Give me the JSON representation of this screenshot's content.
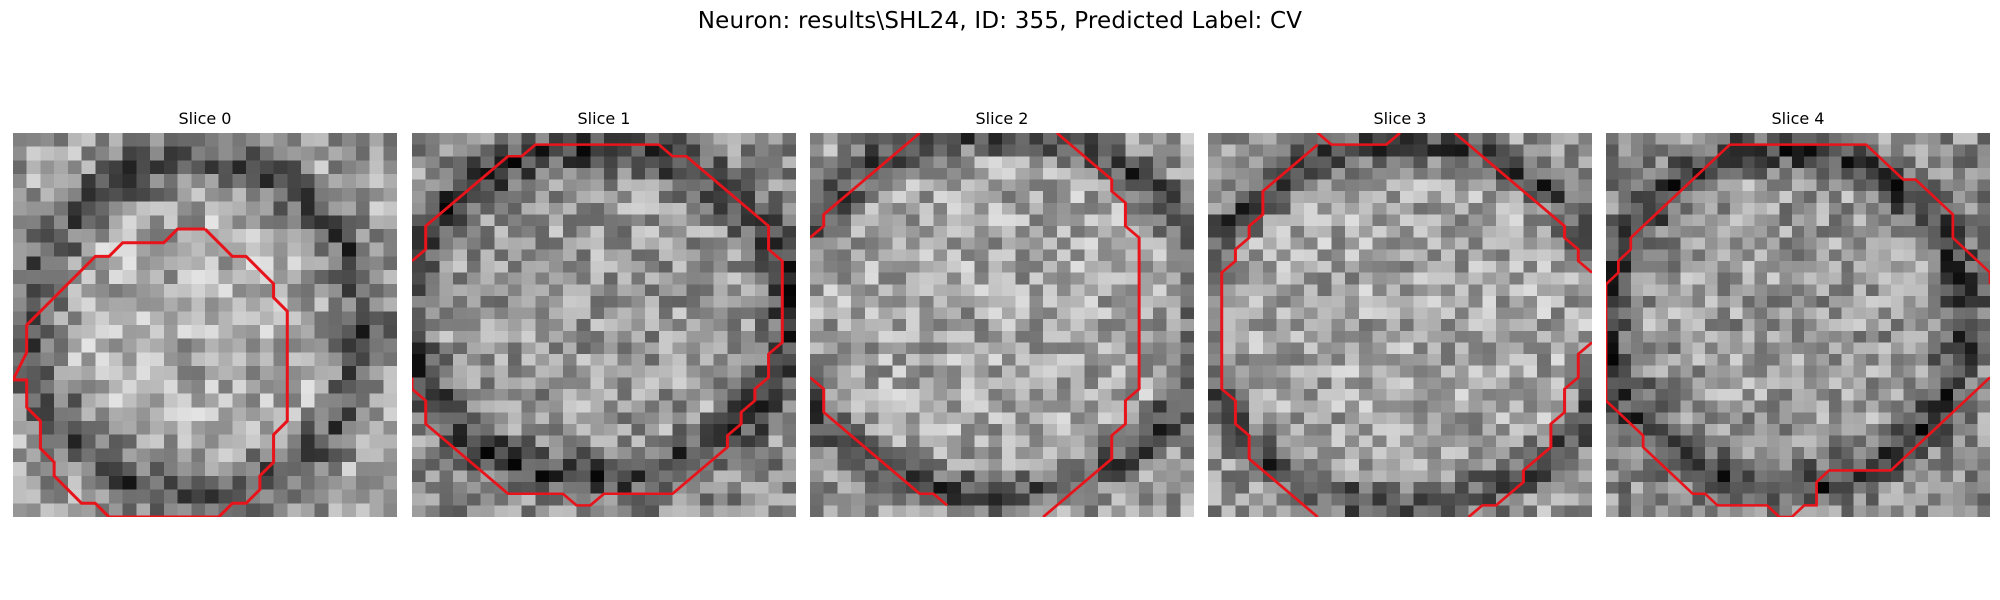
{
  "figure": {
    "title": "Neuron: results\\SHL24, ID: 355, Predicted Label: CV"
  },
  "contour_color": "#e8141b",
  "panels": [
    {
      "title": "Slice 0",
      "contours": [
        [
          [
            14,
            7
          ],
          [
            12,
            7
          ],
          [
            11,
            8
          ],
          [
            8,
            8
          ],
          [
            7,
            9
          ],
          [
            6,
            9
          ],
          [
            5,
            10
          ],
          [
            4,
            11
          ],
          [
            3,
            12
          ],
          [
            2,
            13
          ],
          [
            1,
            14
          ],
          [
            1,
            16
          ],
          [
            0,
            18
          ],
          [
            1,
            18
          ],
          [
            1,
            20
          ],
          [
            2,
            21
          ],
          [
            2,
            23
          ],
          [
            3,
            24
          ],
          [
            3,
            25
          ],
          [
            4,
            26
          ],
          [
            5,
            27
          ],
          [
            6,
            27
          ],
          [
            7,
            28
          ],
          [
            15,
            28
          ],
          [
            16,
            27
          ],
          [
            17,
            27
          ],
          [
            18,
            26
          ],
          [
            18,
            25
          ],
          [
            19,
            24
          ],
          [
            19,
            22
          ],
          [
            20,
            21
          ],
          [
            20,
            18
          ],
          [
            20,
            15
          ],
          [
            20,
            13
          ],
          [
            19,
            12
          ],
          [
            19,
            11
          ],
          [
            18,
            10
          ],
          [
            17,
            9
          ],
          [
            16,
            9
          ],
          [
            15,
            8
          ],
          [
            14,
            7
          ]
        ]
      ],
      "seed": 11,
      "ring": {
        "cx": 13.5,
        "cy": 14.2,
        "r": 12.2,
        "w": 2.6
      },
      "bg": 0.62
    },
    {
      "title": "Slice 1",
      "contours": [
        [
          [
            0,
            11
          ],
          [
            1,
            10
          ],
          [
            1,
            8
          ],
          [
            2,
            7
          ],
          [
            3,
            6
          ],
          [
            4,
            5
          ],
          [
            5,
            4
          ],
          [
            6,
            3
          ],
          [
            7,
            2
          ],
          [
            8,
            2
          ],
          [
            9,
            1
          ],
          [
            18,
            1
          ],
          [
            19,
            2
          ],
          [
            20,
            2
          ],
          [
            21,
            3
          ],
          [
            22,
            4
          ],
          [
            23,
            5
          ],
          [
            24,
            6
          ],
          [
            25,
            7
          ],
          [
            26,
            8
          ],
          [
            26,
            10
          ],
          [
            27,
            11
          ],
          [
            27,
            18
          ],
          [
            26,
            19
          ],
          [
            26,
            21
          ],
          [
            25,
            22
          ],
          [
            25,
            23
          ],
          [
            24,
            24
          ],
          [
            24,
            25
          ],
          [
            23,
            26
          ],
          [
            23,
            27
          ],
          [
            22,
            28
          ],
          [
            21,
            29
          ],
          [
            20,
            30
          ],
          [
            19,
            31
          ],
          [
            14,
            31
          ],
          [
            13,
            32
          ],
          [
            12,
            32
          ],
          [
            11,
            31
          ],
          [
            7,
            31
          ],
          [
            6,
            30
          ],
          [
            5,
            29
          ],
          [
            4,
            28
          ],
          [
            3,
            27
          ],
          [
            2,
            26
          ],
          [
            1,
            25
          ],
          [
            1,
            23
          ],
          [
            0,
            22
          ],
          [
            0,
            21
          ]
        ]
      ],
      "seed": 23,
      "ring": {
        "cx": 13.5,
        "cy": 15.5,
        "r": 14.2,
        "w": 2.6
      },
      "bg": 0.55
    },
    {
      "title": "Slice 2",
      "contours": [
        [
          [
            0,
            9
          ],
          [
            1,
            8
          ],
          [
            1,
            7
          ],
          [
            2,
            6
          ],
          [
            3,
            5
          ],
          [
            4,
            4
          ],
          [
            5,
            3
          ],
          [
            6,
            2
          ],
          [
            7,
            1
          ],
          [
            8,
            0
          ]
        ],
        [
          [
            18,
            0
          ],
          [
            19,
            1
          ],
          [
            20,
            2
          ],
          [
            21,
            3
          ],
          [
            22,
            4
          ],
          [
            22,
            5
          ],
          [
            23,
            6
          ],
          [
            23,
            8
          ],
          [
            24,
            9
          ],
          [
            24,
            15
          ],
          [
            24,
            20
          ],
          [
            24,
            22
          ],
          [
            23,
            23
          ],
          [
            23,
            25
          ],
          [
            22,
            26
          ],
          [
            22,
            28
          ],
          [
            21,
            29
          ],
          [
            20,
            30
          ],
          [
            19,
            31
          ],
          [
            18,
            32
          ],
          [
            17,
            33
          ]
        ],
        [
          [
            0,
            21
          ],
          [
            1,
            22
          ],
          [
            1,
            24
          ],
          [
            2,
            25
          ],
          [
            3,
            26
          ],
          [
            4,
            27
          ],
          [
            5,
            28
          ],
          [
            6,
            29
          ],
          [
            7,
            30
          ],
          [
            8,
            31
          ],
          [
            9,
            31
          ],
          [
            10,
            32
          ]
        ]
      ],
      "seed": 37,
      "ring": {
        "cx": 13.5,
        "cy": 15.5,
        "r": 15.5,
        "w": 2.4
      },
      "bg": 0.6
    },
    {
      "title": "Slice 3",
      "contours": [
        [
          [
            8,
            0
          ],
          [
            9,
            1
          ],
          [
            13,
            1
          ],
          [
            14,
            0
          ]
        ],
        [
          [
            18,
            0
          ],
          [
            19,
            1
          ],
          [
            20,
            2
          ],
          [
            21,
            3
          ],
          [
            22,
            4
          ],
          [
            23,
            5
          ],
          [
            24,
            6
          ],
          [
            25,
            7
          ],
          [
            26,
            8
          ],
          [
            26,
            9
          ],
          [
            27,
            10
          ],
          [
            27,
            11
          ],
          [
            28,
            12
          ]
        ],
        [
          [
            8,
            1
          ],
          [
            7,
            2
          ],
          [
            6,
            3
          ],
          [
            5,
            4
          ],
          [
            4,
            5
          ],
          [
            4,
            7
          ],
          [
            3,
            8
          ],
          [
            3,
            9
          ],
          [
            2,
            10
          ],
          [
            2,
            11
          ],
          [
            1,
            12
          ],
          [
            1,
            13
          ],
          [
            1,
            20
          ],
          [
            1,
            22
          ],
          [
            2,
            23
          ],
          [
            2,
            25
          ],
          [
            3,
            26
          ],
          [
            3,
            28
          ],
          [
            4,
            29
          ],
          [
            5,
            30
          ],
          [
            6,
            31
          ],
          [
            7,
            32
          ],
          [
            8,
            33
          ]
        ],
        [
          [
            28,
            18
          ],
          [
            27,
            19
          ],
          [
            27,
            21
          ],
          [
            26,
            22
          ],
          [
            26,
            24
          ],
          [
            25,
            25
          ],
          [
            25,
            27
          ],
          [
            24,
            28
          ],
          [
            23,
            29
          ],
          [
            23,
            30
          ],
          [
            22,
            31
          ],
          [
            21,
            32
          ],
          [
            20,
            32
          ],
          [
            19,
            33
          ]
        ]
      ],
      "seed": 53,
      "ring": {
        "cx": 14.5,
        "cy": 16.5,
        "r": 15.5,
        "w": 2.4
      },
      "bg": 0.6
    },
    {
      "title": "Slice 4",
      "contours": [
        [
          [
            0,
            13
          ],
          [
            1,
            12
          ],
          [
            1,
            11
          ],
          [
            2,
            10
          ],
          [
            2,
            9
          ],
          [
            3,
            8
          ],
          [
            4,
            7
          ],
          [
            5,
            6
          ],
          [
            6,
            5
          ],
          [
            7,
            4
          ],
          [
            8,
            3
          ],
          [
            9,
            2
          ],
          [
            10,
            1
          ],
          [
            21,
            1
          ],
          [
            22,
            2
          ],
          [
            23,
            3
          ],
          [
            24,
            4
          ],
          [
            25,
            4
          ],
          [
            26,
            5
          ],
          [
            27,
            6
          ],
          [
            28,
            7
          ],
          [
            28,
            9
          ],
          [
            29,
            10
          ],
          [
            30,
            11
          ],
          [
            31,
            12
          ],
          [
            31,
            13
          ]
        ],
        [
          [
            0,
            13
          ],
          [
            0,
            18
          ],
          [
            0,
            23
          ],
          [
            1,
            24
          ],
          [
            2,
            25
          ],
          [
            3,
            26
          ],
          [
            3,
            27
          ],
          [
            4,
            28
          ],
          [
            5,
            29
          ],
          [
            6,
            30
          ],
          [
            7,
            31
          ],
          [
            8,
            31
          ],
          [
            9,
            32
          ],
          [
            13,
            32
          ],
          [
            14,
            33
          ],
          [
            15,
            33
          ],
          [
            16,
            32
          ],
          [
            17,
            32
          ],
          [
            17,
            30
          ],
          [
            18,
            29
          ],
          [
            23,
            29
          ],
          [
            24,
            28
          ],
          [
            25,
            27
          ],
          [
            26,
            26
          ],
          [
            27,
            25
          ],
          [
            28,
            24
          ],
          [
            29,
            23
          ],
          [
            30,
            22
          ],
          [
            31,
            21
          ]
        ]
      ],
      "seed": 71,
      "ring": {
        "cx": 14.5,
        "cy": 16.0,
        "r": 14.5,
        "w": 2.6
      },
      "bg": 0.55
    }
  ]
}
